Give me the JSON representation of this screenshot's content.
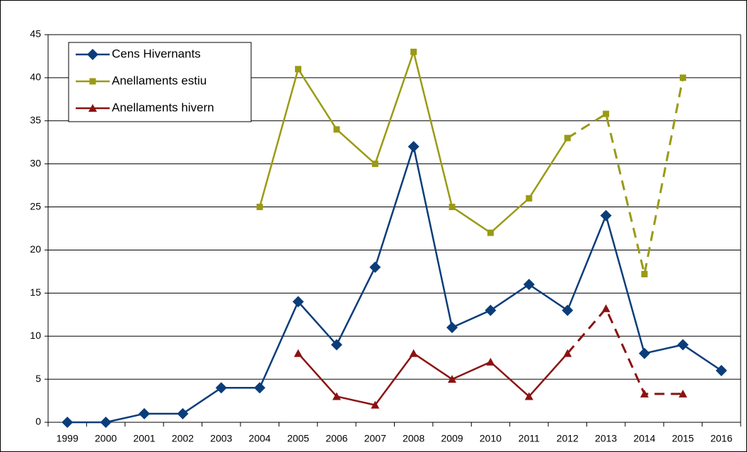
{
  "chart_data": {
    "type": "line",
    "categories": [
      "1999",
      "2000",
      "2001",
      "2002",
      "2003",
      "2004",
      "2005",
      "2006",
      "2007",
      "2008",
      "2009",
      "2010",
      "2011",
      "2012",
      "2013",
      "2014",
      "2015",
      "2016"
    ],
    "series": [
      {
        "name": "Cens Hivernants",
        "color": "#0b3d7a",
        "marker": "diamond",
        "values": [
          0,
          0,
          1,
          1,
          4,
          4,
          14,
          9,
          18,
          32,
          11,
          13,
          16,
          13,
          24,
          8,
          9,
          6
        ]
      },
      {
        "name": "Anellaments estiu",
        "color": "#9a9a14",
        "marker": "square",
        "dashed_from": "2012",
        "values": [
          null,
          null,
          null,
          null,
          null,
          25,
          41,
          34,
          30,
          43,
          25,
          22,
          26,
          33,
          35.8,
          17.2,
          40,
          null
        ]
      },
      {
        "name": "Anellaments hivern",
        "color": "#8b1212",
        "marker": "triangle",
        "dashed_from": "2012",
        "values": [
          null,
          null,
          null,
          null,
          null,
          null,
          8,
          3,
          2,
          8,
          5,
          7,
          3,
          8,
          13.2,
          3.3,
          3.3,
          null
        ]
      }
    ],
    "ylim": [
      0,
      45
    ],
    "yticks": [
      0,
      5,
      10,
      15,
      20,
      25,
      30,
      35,
      40,
      45
    ],
    "grid": true,
    "legend": "top-left"
  }
}
